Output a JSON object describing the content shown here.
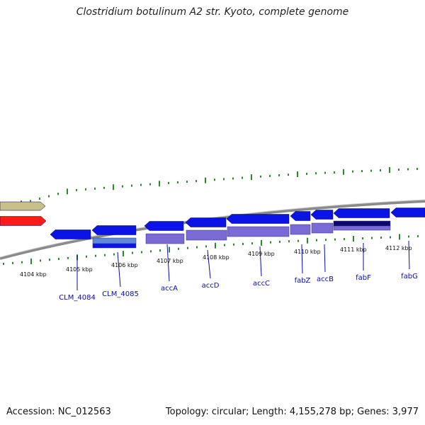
{
  "title": "Clostridium botulinum A2 str. Kyoto, complete genome",
  "accession": "Accession: NC_012563",
  "summary": "Topology: circular; Length: 4,155,278 bp; Genes: 3,977",
  "colors": {
    "backbone": "#8a8a8a",
    "tick_green": "#2a8a2a",
    "gene_blue": "#0a14e6",
    "gene_purple": "#7a6ad6",
    "gene_navy": "#0a0a6e",
    "gene_red": "#ff1a1a",
    "gene_khaki": "#c8c088",
    "label_blue": "#0a0aa8"
  },
  "scale_labels": [
    "4104 kbp",
    "4105 kbp",
    "4106 kbp",
    "4107 kbp",
    "4108 kbp",
    "4109 kbp",
    "4110 kbp",
    "4111 kbp",
    "4112 kbp"
  ],
  "gene_labels": [
    "CLM_4084",
    "CLM_4085",
    "accA",
    "accD",
    "accC",
    "fabZ",
    "accB",
    "fabF",
    "fabG"
  ]
}
